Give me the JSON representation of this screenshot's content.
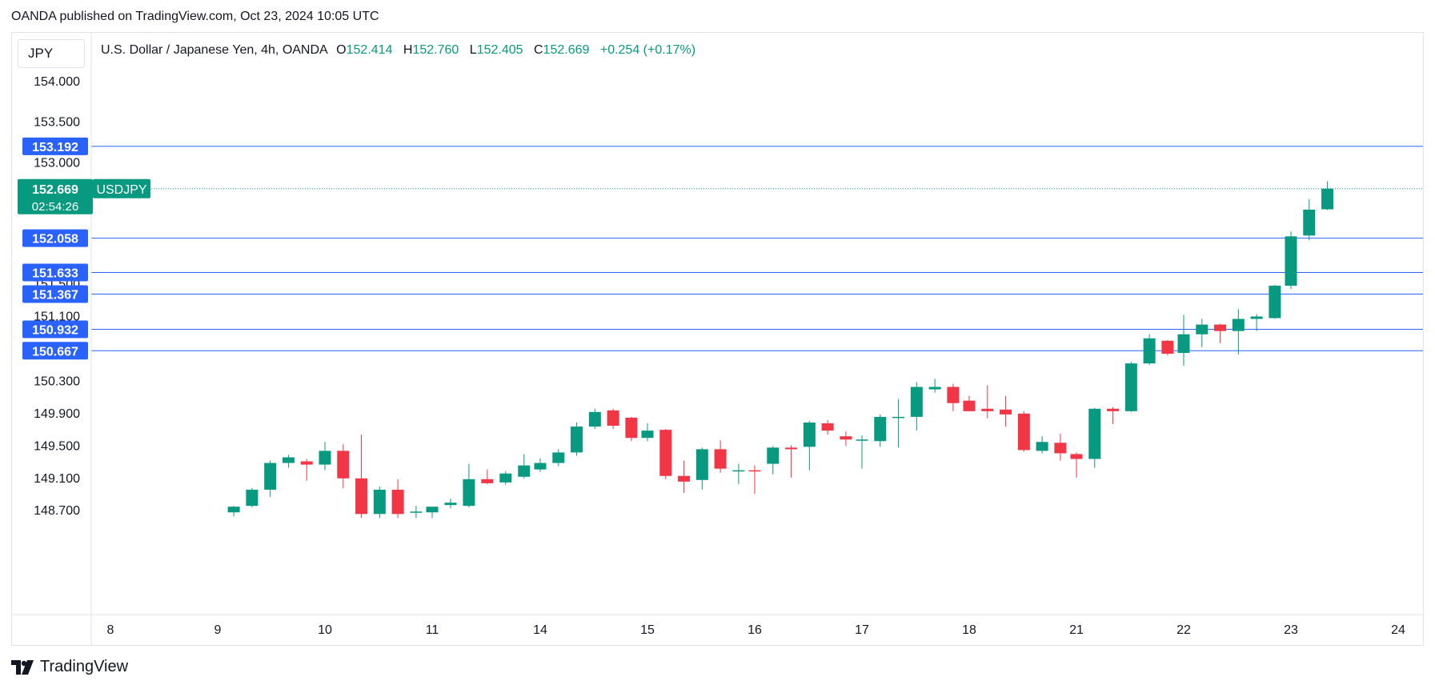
{
  "header": {
    "published_line": "OANDA published on TradingView.com, Oct 23, 2024 10:05 UTC"
  },
  "legend": {
    "symbol_line": "U.S. Dollar / Japanese Yen, 4h, OANDA",
    "o_label": "O",
    "o_value": "152.414",
    "h_label": "H",
    "h_value": "152.760",
    "l_label": "L",
    "l_value": "152.405",
    "c_label": "C",
    "c_value": "152.669",
    "change": "+0.254 (+0.17%)"
  },
  "currency_label": "JPY",
  "footer": {
    "brand": "TradingView"
  },
  "colors": {
    "up": "#089981",
    "down": "#f23645",
    "level_line": "#2962ff",
    "level_badge": "#2962ff",
    "price_badge": "#089981",
    "axis_text": "#131722"
  },
  "chart_data": {
    "type": "candlestick",
    "title": "U.S. Dollar / Japanese Yen, 4h, OANDA",
    "y_axis_ticks": [
      "154.000",
      "153.500",
      "153.000",
      "151.500",
      "151.100",
      "150.300",
      "149.900",
      "149.500",
      "149.100",
      "148.700"
    ],
    "y_tick_values": [
      154.0,
      153.5,
      153.0,
      151.5,
      151.1,
      150.3,
      149.9,
      149.5,
      149.1,
      148.7
    ],
    "x_axis_ticks": [
      "8",
      "9",
      "10",
      "11",
      "14",
      "15",
      "16",
      "17",
      "18",
      "21",
      "22",
      "23",
      "24"
    ],
    "horizontal_levels": [
      {
        "value": 153.192,
        "label": "153.192"
      },
      {
        "value": 152.058,
        "label": "152.058"
      },
      {
        "value": 151.633,
        "label": "151.633"
      },
      {
        "value": 151.367,
        "label": "151.367"
      },
      {
        "value": 150.932,
        "label": "150.932"
      },
      {
        "value": 150.667,
        "label": "150.667"
      }
    ],
    "last_price": {
      "value": 152.669,
      "label": "152.669",
      "countdown": "02:54:26",
      "symbol": "USDJPY"
    },
    "candles": [
      {
        "x": 9.15,
        "o": 148.67,
        "h": 148.75,
        "l": 148.62,
        "c": 148.74
      },
      {
        "x": 9.32,
        "o": 148.75,
        "h": 148.97,
        "l": 148.73,
        "c": 148.95
      },
      {
        "x": 9.49,
        "o": 148.95,
        "h": 149.31,
        "l": 148.86,
        "c": 149.28
      },
      {
        "x": 9.66,
        "o": 149.28,
        "h": 149.38,
        "l": 149.22,
        "c": 149.35
      },
      {
        "x": 9.83,
        "o": 149.3,
        "h": 149.33,
        "l": 149.06,
        "c": 149.26
      },
      {
        "x": 10.0,
        "o": 149.26,
        "h": 149.54,
        "l": 149.19,
        "c": 149.43
      },
      {
        "x": 10.17,
        "o": 149.43,
        "h": 149.51,
        "l": 148.97,
        "c": 149.09
      },
      {
        "x": 10.34,
        "o": 149.09,
        "h": 149.63,
        "l": 148.6,
        "c": 148.65
      },
      {
        "x": 10.51,
        "o": 148.65,
        "h": 148.99,
        "l": 148.6,
        "c": 148.95
      },
      {
        "x": 10.68,
        "o": 148.95,
        "h": 149.08,
        "l": 148.6,
        "c": 148.65
      },
      {
        "x": 10.85,
        "o": 148.67,
        "h": 148.75,
        "l": 148.6,
        "c": 148.68
      },
      {
        "x": 11.0,
        "o": 148.67,
        "h": 148.73,
        "l": 148.6,
        "c": 148.74
      },
      {
        "x": 11.17,
        "o": 148.76,
        "h": 148.84,
        "l": 148.72,
        "c": 148.79
      },
      {
        "x": 11.34,
        "o": 148.75,
        "h": 149.27,
        "l": 148.73,
        "c": 149.08
      },
      {
        "x": 11.51,
        "o": 149.08,
        "h": 149.2,
        "l": 149.02,
        "c": 149.03
      },
      {
        "x": 11.68,
        "o": 149.04,
        "h": 149.18,
        "l": 149.01,
        "c": 149.15
      },
      {
        "x": 11.85,
        "o": 149.11,
        "h": 149.39,
        "l": 149.09,
        "c": 149.25
      },
      {
        "x": 14.0,
        "o": 149.2,
        "h": 149.34,
        "l": 149.17,
        "c": 149.28
      },
      {
        "x": 14.17,
        "o": 149.28,
        "h": 149.45,
        "l": 149.24,
        "c": 149.41
      },
      {
        "x": 14.34,
        "o": 149.41,
        "h": 149.78,
        "l": 149.37,
        "c": 149.73
      },
      {
        "x": 14.51,
        "o": 149.73,
        "h": 149.95,
        "l": 149.7,
        "c": 149.91
      },
      {
        "x": 14.68,
        "o": 149.93,
        "h": 149.95,
        "l": 149.7,
        "c": 149.74
      },
      {
        "x": 14.85,
        "o": 149.84,
        "h": 149.85,
        "l": 149.55,
        "c": 149.59
      },
      {
        "x": 15.0,
        "o": 149.59,
        "h": 149.77,
        "l": 149.55,
        "c": 149.68
      },
      {
        "x": 15.17,
        "o": 149.69,
        "h": 149.7,
        "l": 149.08,
        "c": 149.12
      },
      {
        "x": 15.34,
        "o": 149.12,
        "h": 149.31,
        "l": 148.91,
        "c": 149.05
      },
      {
        "x": 15.51,
        "o": 149.07,
        "h": 149.47,
        "l": 148.95,
        "c": 149.45
      },
      {
        "x": 15.68,
        "o": 149.45,
        "h": 149.56,
        "l": 149.16,
        "c": 149.21
      },
      {
        "x": 15.85,
        "o": 149.19,
        "h": 149.27,
        "l": 149.02,
        "c": 149.19
      },
      {
        "x": 16.0,
        "o": 149.19,
        "h": 149.25,
        "l": 148.9,
        "c": 149.18
      },
      {
        "x": 16.17,
        "o": 149.27,
        "h": 149.49,
        "l": 149.14,
        "c": 149.47
      },
      {
        "x": 16.34,
        "o": 149.47,
        "h": 149.5,
        "l": 149.1,
        "c": 149.45
      },
      {
        "x": 16.51,
        "o": 149.48,
        "h": 149.8,
        "l": 149.19,
        "c": 149.78
      },
      {
        "x": 16.68,
        "o": 149.77,
        "h": 149.81,
        "l": 149.63,
        "c": 149.68
      },
      {
        "x": 16.85,
        "o": 149.61,
        "h": 149.67,
        "l": 149.49,
        "c": 149.57
      },
      {
        "x": 17.0,
        "o": 149.57,
        "h": 149.62,
        "l": 149.21,
        "c": 149.57
      },
      {
        "x": 17.17,
        "o": 149.55,
        "h": 149.88,
        "l": 149.48,
        "c": 149.85
      },
      {
        "x": 17.34,
        "o": 149.85,
        "h": 150.07,
        "l": 149.47,
        "c": 149.85
      },
      {
        "x": 17.51,
        "o": 149.85,
        "h": 150.28,
        "l": 149.68,
        "c": 150.22
      },
      {
        "x": 17.68,
        "o": 150.19,
        "h": 150.32,
        "l": 150.15,
        "c": 150.22
      },
      {
        "x": 17.85,
        "o": 150.22,
        "h": 150.26,
        "l": 149.92,
        "c": 150.02
      },
      {
        "x": 18.0,
        "o": 150.05,
        "h": 150.11,
        "l": 149.92,
        "c": 149.92
      },
      {
        "x": 18.17,
        "o": 149.95,
        "h": 150.24,
        "l": 149.83,
        "c": 149.92
      },
      {
        "x": 18.34,
        "o": 149.94,
        "h": 150.11,
        "l": 149.73,
        "c": 149.88
      },
      {
        "x": 18.51,
        "o": 149.89,
        "h": 149.92,
        "l": 149.42,
        "c": 149.44
      },
      {
        "x": 18.68,
        "o": 149.43,
        "h": 149.61,
        "l": 149.4,
        "c": 149.54
      },
      {
        "x": 18.85,
        "o": 149.53,
        "h": 149.64,
        "l": 149.31,
        "c": 149.4
      },
      {
        "x": 21.0,
        "o": 149.39,
        "h": 149.41,
        "l": 149.1,
        "c": 149.33
      },
      {
        "x": 21.17,
        "o": 149.33,
        "h": 149.96,
        "l": 149.22,
        "c": 149.95
      },
      {
        "x": 21.34,
        "o": 149.95,
        "h": 149.97,
        "l": 149.76,
        "c": 149.92
      },
      {
        "x": 21.51,
        "o": 149.92,
        "h": 150.53,
        "l": 149.91,
        "c": 150.51
      },
      {
        "x": 21.68,
        "o": 150.51,
        "h": 150.87,
        "l": 150.49,
        "c": 150.82
      },
      {
        "x": 21.85,
        "o": 150.79,
        "h": 150.8,
        "l": 150.61,
        "c": 150.63
      },
      {
        "x": 22.0,
        "o": 150.64,
        "h": 151.11,
        "l": 150.48,
        "c": 150.87
      },
      {
        "x": 22.17,
        "o": 150.87,
        "h": 151.06,
        "l": 150.71,
        "c": 150.99
      },
      {
        "x": 22.34,
        "o": 150.99,
        "h": 151.0,
        "l": 150.76,
        "c": 150.91
      },
      {
        "x": 22.51,
        "o": 150.91,
        "h": 151.18,
        "l": 150.62,
        "c": 151.06
      },
      {
        "x": 22.68,
        "o": 151.06,
        "h": 151.12,
        "l": 150.91,
        "c": 151.09
      },
      {
        "x": 22.85,
        "o": 151.07,
        "h": 151.48,
        "l": 151.06,
        "c": 151.47
      },
      {
        "x": 23.0,
        "o": 151.47,
        "h": 152.14,
        "l": 151.43,
        "c": 152.08
      },
      {
        "x": 23.17,
        "o": 152.09,
        "h": 152.54,
        "l": 152.03,
        "c": 152.41
      },
      {
        "x": 23.34,
        "o": 152.414,
        "h": 152.76,
        "l": 152.405,
        "c": 152.669
      }
    ]
  }
}
